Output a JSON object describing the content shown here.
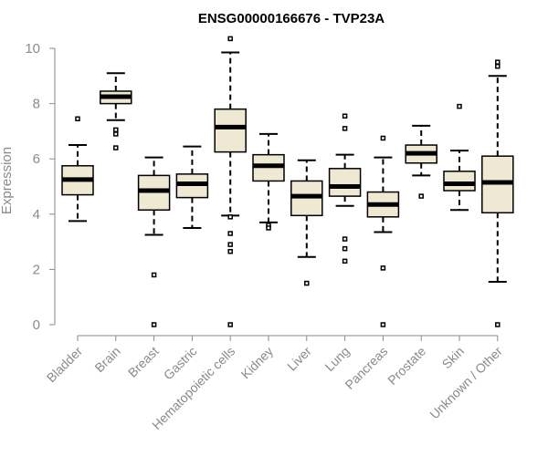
{
  "chart_data": {
    "type": "boxplot",
    "title": "ENSG00000166676 - TVP23A",
    "xlabel": "",
    "ylabel": "Expression",
    "ylim": [
      0,
      10
    ],
    "yticks": [
      0,
      2,
      4,
      6,
      8,
      10
    ],
    "box_fill": "#efe8d2",
    "categories": [
      "Bladder",
      "Brain",
      "Breast",
      "Gastric",
      "Hematopoietic cells",
      "Kidney",
      "Liver",
      "Lung",
      "Pancreas",
      "Prostate",
      "Skin",
      "Unknown / Other"
    ],
    "series": [
      {
        "name": "Bladder",
        "whisker_low": 3.75,
        "q1": 4.7,
        "median": 5.25,
        "q3": 5.75,
        "whisker_high": 6.5,
        "outliers": [
          7.45
        ]
      },
      {
        "name": "Brain",
        "whisker_low": 7.4,
        "q1": 8.0,
        "median": 8.25,
        "q3": 8.45,
        "whisker_high": 9.1,
        "outliers": [
          6.4,
          6.9,
          7.05
        ]
      },
      {
        "name": "Breast",
        "whisker_low": 3.25,
        "q1": 4.15,
        "median": 4.85,
        "q3": 5.4,
        "whisker_high": 6.05,
        "outliers": [
          1.8,
          0.0
        ]
      },
      {
        "name": "Gastric",
        "whisker_low": 3.5,
        "q1": 4.6,
        "median": 5.1,
        "q3": 5.45,
        "whisker_high": 6.45,
        "outliers": []
      },
      {
        "name": "Hematopoietic cells",
        "whisker_low": 3.95,
        "q1": 6.25,
        "median": 7.15,
        "q3": 7.8,
        "whisker_high": 9.85,
        "outliers": [
          10.35,
          3.9,
          3.3,
          2.9,
          2.65,
          0.0
        ]
      },
      {
        "name": "Kidney",
        "whisker_low": 3.7,
        "q1": 5.2,
        "median": 5.75,
        "q3": 6.15,
        "whisker_high": 6.9,
        "outliers": [
          3.6,
          3.5
        ]
      },
      {
        "name": "Liver",
        "whisker_low": 2.45,
        "q1": 3.95,
        "median": 4.65,
        "q3": 5.2,
        "whisker_high": 5.95,
        "outliers": [
          1.5
        ]
      },
      {
        "name": "Lung",
        "whisker_low": 4.3,
        "q1": 4.65,
        "median": 5.0,
        "q3": 5.65,
        "whisker_high": 6.15,
        "outliers": [
          7.55,
          7.1,
          3.1,
          2.75,
          2.3
        ]
      },
      {
        "name": "Pancreas",
        "whisker_low": 3.35,
        "q1": 3.9,
        "median": 4.35,
        "q3": 4.8,
        "whisker_high": 6.05,
        "outliers": [
          6.75,
          2.05,
          0.0
        ]
      },
      {
        "name": "Prostate",
        "whisker_low": 5.4,
        "q1": 5.85,
        "median": 6.2,
        "q3": 6.5,
        "whisker_high": 7.2,
        "outliers": [
          4.65
        ]
      },
      {
        "name": "Skin",
        "whisker_low": 4.15,
        "q1": 4.85,
        "median": 5.1,
        "q3": 5.55,
        "whisker_high": 6.3,
        "outliers": [
          7.9
        ]
      },
      {
        "name": "Unknown / Other",
        "whisker_low": 1.55,
        "q1": 4.05,
        "median": 5.15,
        "q3": 6.1,
        "whisker_high": 9.0,
        "outliers": [
          9.5,
          9.35,
          0.0
        ]
      }
    ]
  }
}
